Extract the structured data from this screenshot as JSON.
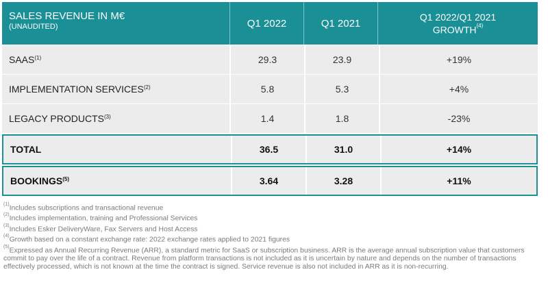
{
  "header": {
    "title": "SALES REVENUE IN M€",
    "subtitle": "(UNAUDITED)",
    "col_q1_2022": "Q1 2022",
    "col_q1_2021": "Q1 2021",
    "col_growth_line1": "Q1 2022/Q1 2021",
    "col_growth_line2": "GROWTH",
    "col_growth_note": "(4)"
  },
  "rows": [
    {
      "label": "SAAS",
      "note": "(1)",
      "q1_2022": "29.3",
      "q1_2021": "23.9",
      "growth": "+19%"
    },
    {
      "label": "IMPLEMENTATION SERVICES",
      "note": "(2)",
      "q1_2022": "5.8",
      "q1_2021": "5.3",
      "growth": "+4%"
    },
    {
      "label": "LEGACY PRODUCTS",
      "note": "(3)",
      "q1_2022": "1.4",
      "q1_2021": "1.8",
      "growth": "-23%"
    },
    {
      "label": "TOTAL",
      "note": "",
      "q1_2022": "36.5",
      "q1_2021": "31.0",
      "growth": "+14%"
    },
    {
      "label": "BOOKINGS",
      "note": "(5)",
      "q1_2022": "3.64",
      "q1_2021": "3.28",
      "growth": "+11%"
    }
  ],
  "footnotes": [
    {
      "mark": "(1)",
      "text": "Includes subscriptions and transactional revenue"
    },
    {
      "mark": "(2)",
      "text": "Includes implementation, training and Professional Services"
    },
    {
      "mark": "(3)",
      "text": "Includes Esker DeliveryWare, Fax Servers and Host Access"
    },
    {
      "mark": "(4)",
      "text": "Growth based on a constant exchange rate: 2022 exchange rates applied to 2021 figures"
    },
    {
      "mark": "(5)",
      "text": "Expressed as Annual Recurring Revenue (ARR), a standard metric for SaaS or subscription business. ARR is the average annual subscription value that customers commit to pay over the life of a contract. Revenue from platform transactions is not included as it is uncertain by nature and depends on the number of transactions effectively processed, which is not known at the time the contract is signed. Service revenue is also not included in ARR as it is non-recurring."
    }
  ],
  "colors": {
    "header_bg": "#1a8f96",
    "row_bg": "#ececec",
    "footnote_text": "#7a7a7a"
  }
}
